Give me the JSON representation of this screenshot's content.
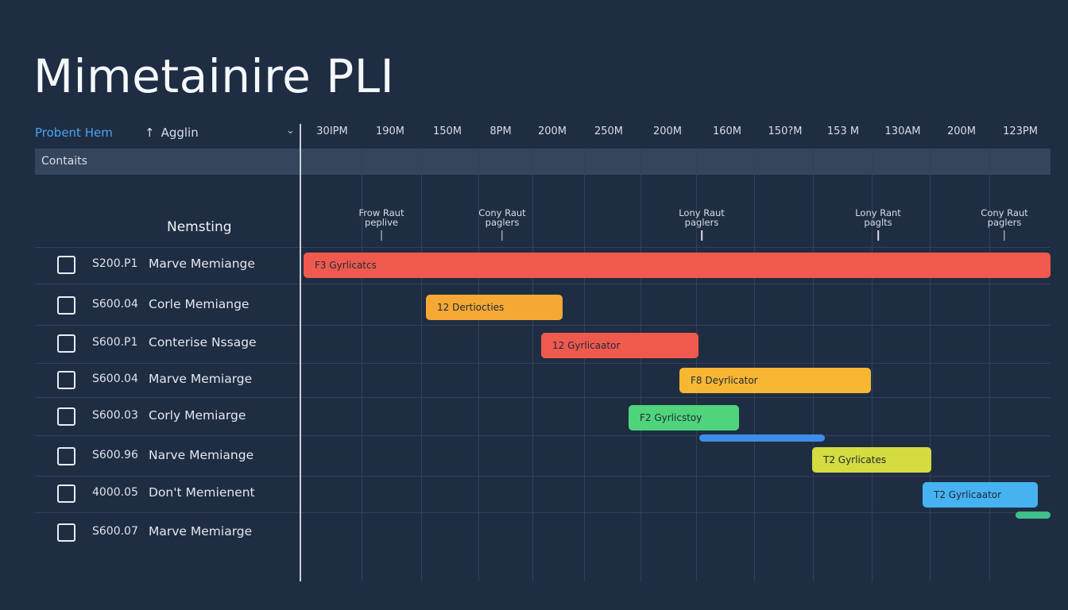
{
  "app": {
    "title": "Mimetainire PLI"
  },
  "header": {
    "primary_label": "Probent Hem",
    "sort_label": "Agglin",
    "sort_icon": "↑",
    "chevron": "⌄",
    "ticks": [
      "30IPM",
      "190M",
      "150M",
      "8PM",
      "200M",
      "250M",
      "200M",
      "160M",
      "150?M",
      "153 M",
      "130AM",
      "200M",
      "123PM"
    ]
  },
  "filter": {
    "label": "Contaits"
  },
  "section": {
    "title": "Nemsting"
  },
  "milestones": [
    {
      "line1": "Frow Raut",
      "line2": "peplive"
    },
    {
      "line1": "Cony Raut",
      "line2": "paglers"
    },
    {
      "line1": "Lony Raut",
      "line2": "paglers"
    },
    {
      "line1": "Lony Rant",
      "line2": "paglts"
    },
    {
      "line1": "Cony Raut",
      "line2": "paglers"
    }
  ],
  "rows": [
    {
      "id": "S200.P1",
      "name": "Marve Memiange"
    },
    {
      "id": "S600.04",
      "name": "Corle Memiange"
    },
    {
      "id": "S600.P1",
      "name": "Conterise Nssage"
    },
    {
      "id": "S600.04",
      "name": "Marve Memiarge"
    },
    {
      "id": "S600.03",
      "name": "Corly Memiarge"
    },
    {
      "id": "S600.96",
      "name": "Narve Memiange"
    },
    {
      "id": "4000.05",
      "name": "Don't Memienent"
    },
    {
      "id": "S600.07",
      "name": "Marve Memiarge"
    }
  ],
  "bars": [
    {
      "label": "F3 Gyrlicatcs",
      "color": "#f05a4e"
    },
    {
      "label": "12 Dertiocties",
      "color": "#f5a934"
    },
    {
      "label": "12 Gyrlicaator",
      "color": "#f05a4e"
    },
    {
      "label": "F8 Deyrlicator",
      "color": "#f7b733"
    },
    {
      "label": "F2 Gyrlicstoy",
      "color": "#4fd47b"
    },
    {
      "label": "",
      "color": "#3f8de8"
    },
    {
      "label": "T2 Gyrlicates",
      "color": "#d4dc3f"
    },
    {
      "label": "T2 Gyrlicaator",
      "color": "#47b2f0"
    },
    {
      "label": "",
      "color": "#3fbf8a"
    }
  ]
}
